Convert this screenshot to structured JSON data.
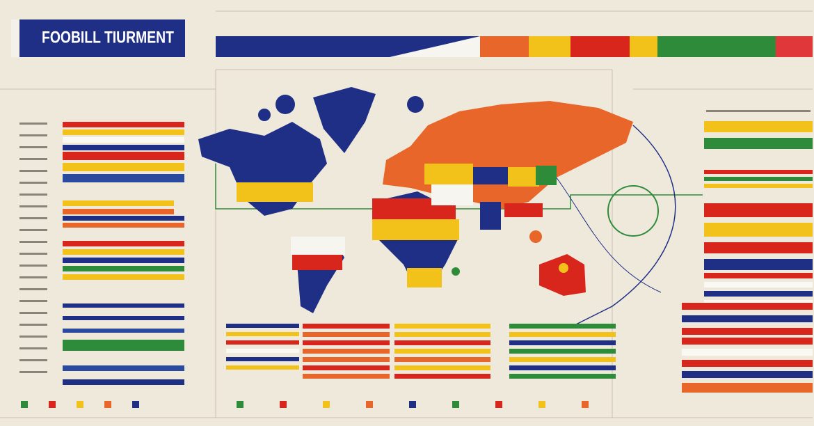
{
  "header": {
    "title": "FOOBILL TIURMENT"
  }
}
